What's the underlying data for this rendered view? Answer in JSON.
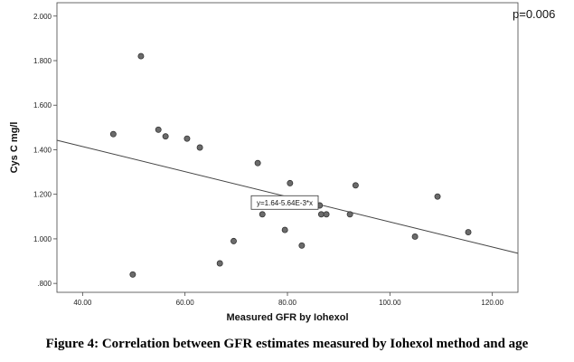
{
  "chart_data": {
    "type": "scatter",
    "title": "",
    "xlabel": "Measured GFR by Iohexol",
    "ylabel": "Cys C mg/l",
    "xlim": [
      35,
      125
    ],
    "ylim": [
      0.76,
      2.06
    ],
    "x_ticks": [
      40,
      60,
      80,
      100,
      120
    ],
    "x_tick_labels": [
      "40.00",
      "60.00",
      "80.00",
      "100.00",
      "120.00"
    ],
    "y_ticks": [
      0.8,
      1.0,
      1.2,
      1.4,
      1.6,
      1.8,
      2.0
    ],
    "y_tick_labels": [
      ".800",
      "1.000",
      "1.200",
      "1.400",
      "1.600",
      "1.800",
      "2.000"
    ],
    "grid": false,
    "annotation": "p=0.006",
    "fit_line": {
      "equation": "y=1.64-5.64E-3*x",
      "intercept": 1.64,
      "slope": -0.00564,
      "label_at_x": 86
    },
    "points": [
      {
        "x": 46.0,
        "y": 1.47
      },
      {
        "x": 49.8,
        "y": 0.84
      },
      {
        "x": 51.4,
        "y": 1.82
      },
      {
        "x": 54.8,
        "y": 1.49
      },
      {
        "x": 56.2,
        "y": 1.46
      },
      {
        "x": 60.4,
        "y": 1.45
      },
      {
        "x": 62.9,
        "y": 1.41
      },
      {
        "x": 66.8,
        "y": 0.89
      },
      {
        "x": 69.5,
        "y": 0.99
      },
      {
        "x": 74.2,
        "y": 1.34
      },
      {
        "x": 75.1,
        "y": 1.11
      },
      {
        "x": 79.5,
        "y": 1.04
      },
      {
        "x": 80.5,
        "y": 1.25
      },
      {
        "x": 82.8,
        "y": 0.97
      },
      {
        "x": 86.3,
        "y": 1.15
      },
      {
        "x": 86.6,
        "y": 1.11
      },
      {
        "x": 87.6,
        "y": 1.11
      },
      {
        "x": 92.2,
        "y": 1.11
      },
      {
        "x": 93.3,
        "y": 1.24
      },
      {
        "x": 104.9,
        "y": 1.01
      },
      {
        "x": 109.3,
        "y": 1.19
      },
      {
        "x": 115.3,
        "y": 1.03
      }
    ]
  },
  "caption": "Figure 4: Correlation between GFR estimates measured by Iohexol method and age",
  "colors": {
    "point_fill": "#6b6b6b",
    "point_stroke": "#2a2a2a",
    "line": "#444444",
    "axis": "#444444"
  }
}
